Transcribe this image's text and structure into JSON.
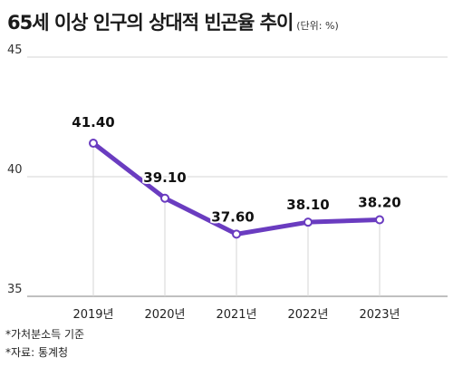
{
  "chart_data": {
    "type": "line",
    "title": "65세 이상 인구의 상대적 빈곤율 추이",
    "unit_note": "(단위: %)",
    "categories": [
      "2019년",
      "2020년",
      "2021년",
      "2022년",
      "2023년"
    ],
    "values": [
      41.4,
      39.1,
      37.6,
      38.1,
      38.2
    ],
    "data_labels": [
      "41.40",
      "39.10",
      "37.60",
      "38.10",
      "38.20"
    ],
    "y_ticks": [
      "45",
      "40",
      "35"
    ],
    "y_tick_values": [
      45,
      40,
      35
    ],
    "ylim": [
      35,
      45
    ],
    "line_color": "#6a3cc0",
    "grid": true
  },
  "footnotes": {
    "note": "*가처분소득 기준",
    "source": "*자료: 통계청"
  }
}
